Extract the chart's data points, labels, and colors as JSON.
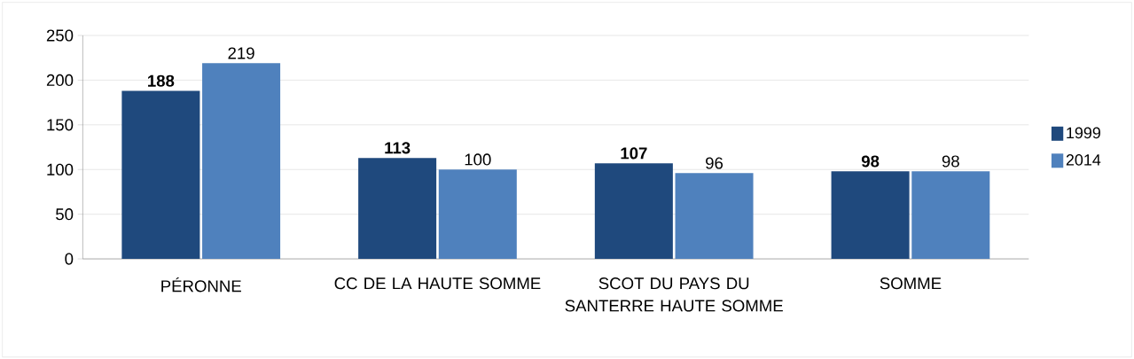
{
  "chart_data": {
    "type": "bar",
    "categories": [
      "PÉRONNE",
      "CC DE LA HAUTE SOMME",
      "SCOT DU PAYS DU SANTERRE HAUTE SOMME",
      "SOMME"
    ],
    "series": [
      {
        "name": "1999",
        "color": "#1f497d",
        "values": [
          188,
          113,
          107,
          98
        ]
      },
      {
        "name": "2014",
        "color": "#4f81bd",
        "values": [
          219,
          100,
          96,
          98
        ]
      }
    ],
    "ylim": [
      0,
      250
    ],
    "yticks": [
      0,
      50,
      100,
      150,
      200,
      250
    ],
    "grid": "y",
    "legend": "right",
    "data_labels": true
  }
}
